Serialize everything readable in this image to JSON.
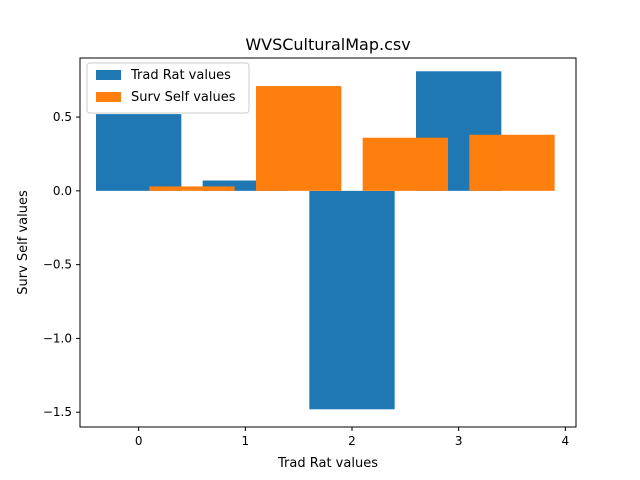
{
  "chart_data": {
    "type": "bar",
    "title": "WVSCulturalMap.csv",
    "xlabel": "Trad Rat values",
    "ylabel": "Surv Self values",
    "xlim": [
      -0.55,
      4.1
    ],
    "ylim": [
      -1.6,
      0.9
    ],
    "xticks": [
      0,
      1,
      2,
      3,
      4
    ],
    "xtick_labels": [
      "0",
      "1",
      "2",
      "3",
      "4"
    ],
    "yticks": [
      -1.5,
      -1.0,
      -0.5,
      0.0,
      0.5
    ],
    "ytick_labels": [
      "−1.5",
      "−1.0",
      "−0.5",
      "0.0",
      "0.5"
    ],
    "grid": false,
    "legend_position": "top-left",
    "series": [
      {
        "name": "Trad Rat values",
        "color": "#1f77b4",
        "x": [
          0,
          1,
          2,
          3
        ],
        "values": [
          0.52,
          0.07,
          -1.48,
          0.81
        ]
      },
      {
        "name": "Surv Self values",
        "color": "#ff7f0e",
        "x": [
          0.5,
          1.5,
          2.5,
          3.5
        ],
        "values": [
          0.03,
          0.71,
          0.36,
          0.38
        ]
      }
    ]
  }
}
